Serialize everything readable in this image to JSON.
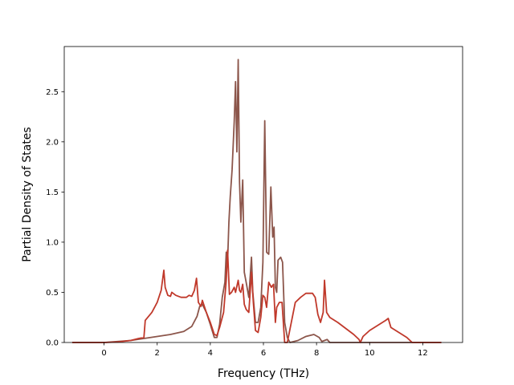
{
  "chart_data": {
    "type": "line",
    "title": "",
    "xlabel": "Frequency (THz)",
    "ylabel": "Partial Density of States",
    "xlim": [
      -1.5,
      13.5
    ],
    "ylim": [
      0.0,
      2.95
    ],
    "xticks": [
      0,
      2,
      4,
      6,
      8,
      10,
      12
    ],
    "xtick_labels": [
      "0",
      "2",
      "4",
      "6",
      "8",
      "10",
      "12"
    ],
    "yticks": [
      0.0,
      0.5,
      1.0,
      1.5,
      2.0,
      2.5
    ],
    "ytick_labels": [
      "0.0",
      "0.5",
      "1.0",
      "1.5",
      "2.0",
      "2.5"
    ],
    "grid": false,
    "legend": "none",
    "series": [
      {
        "color": "#8c564b",
        "points": [
          [
            -1.2,
            0.0
          ],
          [
            0.0,
            0.0
          ],
          [
            0.5,
            0.01
          ],
          [
            1.0,
            0.02
          ],
          [
            1.5,
            0.04
          ],
          [
            2.0,
            0.06
          ],
          [
            2.5,
            0.08
          ],
          [
            3.0,
            0.11
          ],
          [
            3.3,
            0.16
          ],
          [
            3.5,
            0.26
          ],
          [
            3.6,
            0.36
          ],
          [
            3.7,
            0.38
          ],
          [
            3.85,
            0.3
          ],
          [
            4.0,
            0.18
          ],
          [
            4.15,
            0.05
          ],
          [
            4.25,
            0.05
          ],
          [
            4.35,
            0.18
          ],
          [
            4.45,
            0.45
          ],
          [
            4.55,
            0.6
          ],
          [
            4.6,
            0.9
          ],
          [
            4.65,
            0.8
          ],
          [
            4.7,
            1.2
          ],
          [
            4.75,
            1.45
          ],
          [
            4.82,
            1.72
          ],
          [
            4.9,
            2.2
          ],
          [
            4.95,
            2.6
          ],
          [
            5.0,
            1.9
          ],
          [
            5.05,
            2.82
          ],
          [
            5.1,
            1.6
          ],
          [
            5.15,
            1.2
          ],
          [
            5.22,
            1.62
          ],
          [
            5.28,
            0.7
          ],
          [
            5.35,
            0.6
          ],
          [
            5.45,
            0.45
          ],
          [
            5.55,
            0.85
          ],
          [
            5.6,
            0.5
          ],
          [
            5.7,
            0.2
          ],
          [
            5.8,
            0.2
          ],
          [
            5.9,
            0.35
          ],
          [
            5.98,
            0.8
          ],
          [
            6.05,
            2.21
          ],
          [
            6.12,
            0.9
          ],
          [
            6.2,
            0.88
          ],
          [
            6.28,
            1.55
          ],
          [
            6.35,
            1.05
          ],
          [
            6.4,
            1.15
          ],
          [
            6.45,
            0.55
          ],
          [
            6.5,
            0.5
          ],
          [
            6.55,
            0.82
          ],
          [
            6.65,
            0.85
          ],
          [
            6.72,
            0.8
          ],
          [
            6.8,
            0.2
          ],
          [
            6.9,
            0.05
          ],
          [
            7.0,
            0.0
          ],
          [
            7.3,
            0.02
          ],
          [
            7.6,
            0.06
          ],
          [
            7.9,
            0.08
          ],
          [
            8.1,
            0.05
          ],
          [
            8.2,
            0.01
          ],
          [
            8.4,
            0.03
          ],
          [
            8.5,
            0.0
          ],
          [
            9.5,
            0.0
          ],
          [
            10.0,
            0.0
          ],
          [
            11.0,
            0.0
          ],
          [
            12.0,
            0.0
          ],
          [
            12.7,
            0.0
          ]
        ]
      },
      {
        "color": "#c0392b",
        "points": [
          [
            -1.2,
            0.0
          ],
          [
            0.0,
            0.0
          ],
          [
            0.5,
            0.005
          ],
          [
            1.0,
            0.02
          ],
          [
            1.3,
            0.04
          ],
          [
            1.5,
            0.05
          ],
          [
            1.55,
            0.22
          ],
          [
            1.8,
            0.3
          ],
          [
            2.0,
            0.4
          ],
          [
            2.15,
            0.52
          ],
          [
            2.25,
            0.72
          ],
          [
            2.3,
            0.55
          ],
          [
            2.4,
            0.47
          ],
          [
            2.5,
            0.46
          ],
          [
            2.55,
            0.5
          ],
          [
            2.7,
            0.47
          ],
          [
            2.9,
            0.45
          ],
          [
            3.1,
            0.45
          ],
          [
            3.2,
            0.47
          ],
          [
            3.3,
            0.46
          ],
          [
            3.4,
            0.52
          ],
          [
            3.48,
            0.64
          ],
          [
            3.55,
            0.4
          ],
          [
            3.65,
            0.36
          ],
          [
            3.7,
            0.42
          ],
          [
            3.85,
            0.3
          ],
          [
            4.0,
            0.2
          ],
          [
            4.15,
            0.08
          ],
          [
            4.25,
            0.07
          ],
          [
            4.35,
            0.15
          ],
          [
            4.5,
            0.3
          ],
          [
            4.6,
            0.62
          ],
          [
            4.65,
            0.92
          ],
          [
            4.72,
            0.48
          ],
          [
            4.8,
            0.5
          ],
          [
            4.9,
            0.55
          ],
          [
            4.95,
            0.5
          ],
          [
            5.05,
            0.62
          ],
          [
            5.1,
            0.52
          ],
          [
            5.15,
            0.5
          ],
          [
            5.22,
            0.58
          ],
          [
            5.28,
            0.38
          ],
          [
            5.35,
            0.33
          ],
          [
            5.45,
            0.3
          ],
          [
            5.5,
            0.5
          ],
          [
            5.55,
            0.7
          ],
          [
            5.62,
            0.4
          ],
          [
            5.7,
            0.12
          ],
          [
            5.8,
            0.1
          ],
          [
            5.9,
            0.25
          ],
          [
            5.98,
            0.47
          ],
          [
            6.05,
            0.45
          ],
          [
            6.12,
            0.35
          ],
          [
            6.2,
            0.6
          ],
          [
            6.3,
            0.55
          ],
          [
            6.38,
            0.58
          ],
          [
            6.45,
            0.2
          ],
          [
            6.5,
            0.35
          ],
          [
            6.6,
            0.4
          ],
          [
            6.7,
            0.4
          ],
          [
            6.8,
            0.0
          ],
          [
            6.9,
            0.0
          ],
          [
            7.05,
            0.2
          ],
          [
            7.2,
            0.4
          ],
          [
            7.4,
            0.45
          ],
          [
            7.6,
            0.49
          ],
          [
            7.85,
            0.49
          ],
          [
            7.95,
            0.45
          ],
          [
            8.05,
            0.28
          ],
          [
            8.15,
            0.2
          ],
          [
            8.25,
            0.3
          ],
          [
            8.3,
            0.62
          ],
          [
            8.38,
            0.3
          ],
          [
            8.5,
            0.25
          ],
          [
            8.8,
            0.2
          ],
          [
            9.1,
            0.14
          ],
          [
            9.4,
            0.08
          ],
          [
            9.6,
            0.03
          ],
          [
            9.65,
            0.0
          ],
          [
            9.75,
            0.06
          ],
          [
            10.0,
            0.12
          ],
          [
            10.3,
            0.17
          ],
          [
            10.6,
            0.22
          ],
          [
            10.7,
            0.24
          ],
          [
            10.8,
            0.15
          ],
          [
            11.1,
            0.1
          ],
          [
            11.4,
            0.05
          ],
          [
            11.6,
            0.0
          ],
          [
            12.0,
            0.0
          ],
          [
            12.7,
            0.0
          ]
        ]
      }
    ]
  }
}
